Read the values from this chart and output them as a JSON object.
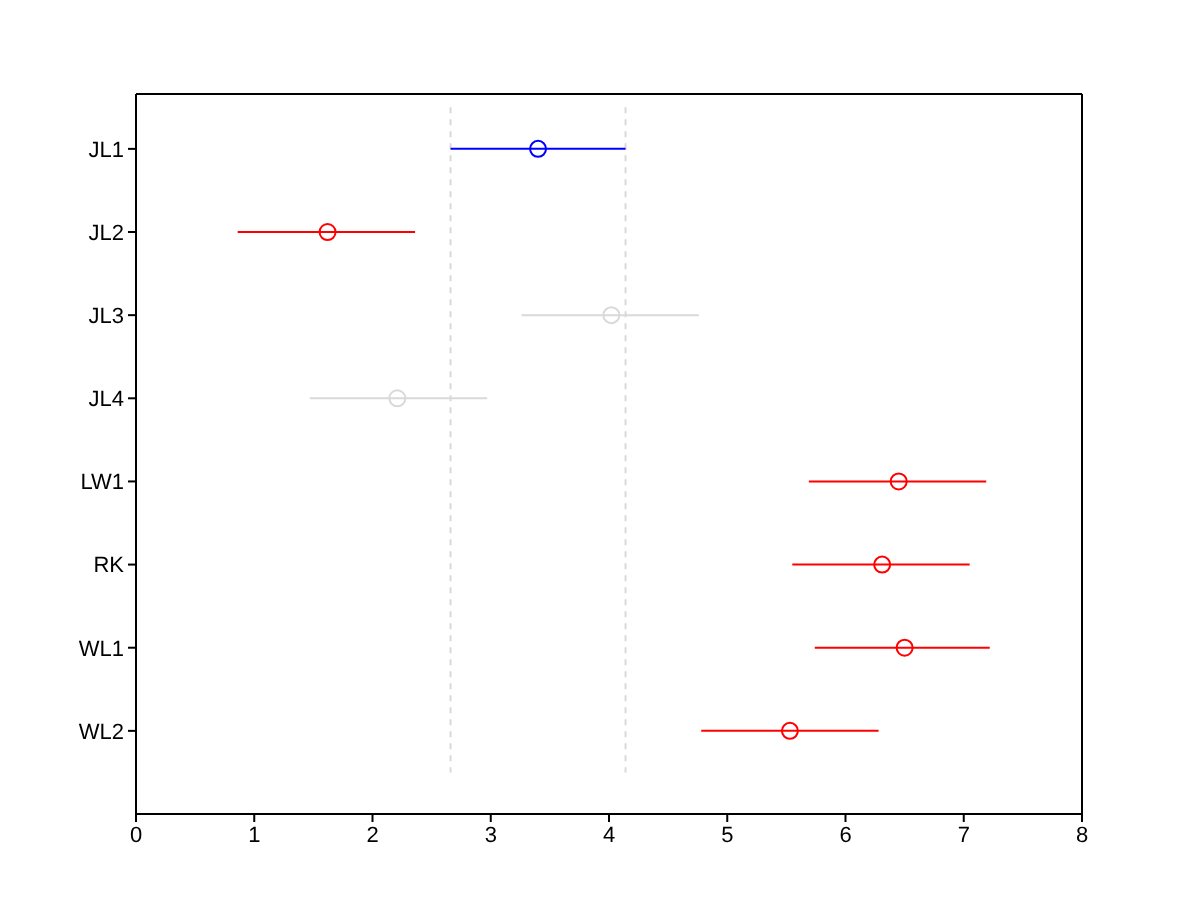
{
  "chart_data": {
    "type": "scatter",
    "orientation": "horizontal",
    "categories": [
      "JL1",
      "JL2",
      "JL3",
      "JL4",
      "LW1",
      "RK",
      "WL1",
      "WL2"
    ],
    "values": [
      3.4,
      1.62,
      4.02,
      2.21,
      6.45,
      6.31,
      6.5,
      5.53
    ],
    "errors": [
      [
        2.66,
        4.14
      ],
      [
        0.86,
        2.36
      ],
      [
        3.26,
        4.76
      ],
      [
        1.47,
        2.97
      ],
      [
        5.69,
        7.19
      ],
      [
        5.55,
        7.05
      ],
      [
        5.74,
        7.22
      ],
      [
        4.78,
        6.28
      ]
    ],
    "colors": [
      "#0000ff",
      "#ff0000",
      "#d9d9d9",
      "#d9d9d9",
      "#ff0000",
      "#ff0000",
      "#ff0000",
      "#ff0000"
    ],
    "marker": "circle",
    "xlim": [
      0,
      8
    ],
    "xticks": [
      0,
      1,
      2,
      3,
      4,
      5,
      6,
      7,
      8
    ],
    "ref_lines": [
      {
        "axis": "x",
        "value": 2.66,
        "color": "#d9d9d9",
        "line_style": "dashed"
      },
      {
        "axis": "x",
        "value": 4.14,
        "color": "#d9d9d9",
        "line_style": "dashed"
      }
    ]
  }
}
